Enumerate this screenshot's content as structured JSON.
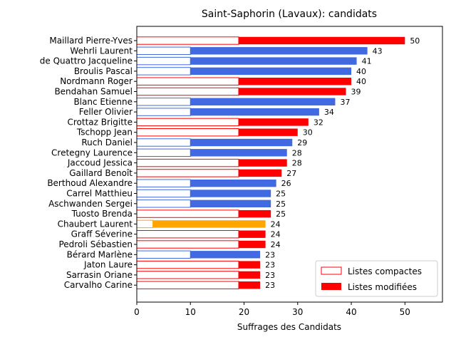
{
  "chart_data": {
    "type": "bar",
    "orientation": "horizontal",
    "title": "Saint-Saphorin (Lavaux): candidats",
    "xlabel": "Suffrages des Candidats",
    "ylabel": "",
    "xlim": [
      0,
      57
    ],
    "xticks": [
      "0",
      "10",
      "20",
      "30",
      "40",
      "50"
    ],
    "legend_position": "bottom-right",
    "legend": [
      {
        "label": "Listes compactes",
        "style": "outline"
      },
      {
        "label": "Listes modifiées",
        "style": "filled"
      }
    ],
    "colors": {
      "red": "#ff0000",
      "blue": "#4169e1",
      "orange": "#ffa500"
    },
    "candidates": [
      {
        "name": "Maillard Pierre-Yves",
        "total": 50,
        "compact": 19,
        "color": "red"
      },
      {
        "name": "Wehrli Laurent",
        "total": 43,
        "compact": 10,
        "color": "blue"
      },
      {
        "name": "de Quattro Jacqueline",
        "total": 41,
        "compact": 10,
        "color": "blue"
      },
      {
        "name": "Broulis Pascal",
        "total": 40,
        "compact": 10,
        "color": "blue"
      },
      {
        "name": "Nordmann Roger",
        "total": 40,
        "compact": 19,
        "color": "red"
      },
      {
        "name": "Bendahan Samuel",
        "total": 39,
        "compact": 19,
        "color": "red"
      },
      {
        "name": "Blanc Etienne",
        "total": 37,
        "compact": 10,
        "color": "blue"
      },
      {
        "name": "Feller Olivier",
        "total": 34,
        "compact": 10,
        "color": "blue"
      },
      {
        "name": "Crottaz Brigitte",
        "total": 32,
        "compact": 19,
        "color": "red"
      },
      {
        "name": "Tschopp Jean",
        "total": 30,
        "compact": 19,
        "color": "red"
      },
      {
        "name": "Ruch Daniel",
        "total": 29,
        "compact": 10,
        "color": "blue"
      },
      {
        "name": "Cretegny Laurence",
        "total": 28,
        "compact": 10,
        "color": "blue"
      },
      {
        "name": "Jaccoud Jessica",
        "total": 28,
        "compact": 19,
        "color": "red"
      },
      {
        "name": "Gaillard Benoît",
        "total": 27,
        "compact": 19,
        "color": "red"
      },
      {
        "name": "Berthoud Alexandre",
        "total": 26,
        "compact": 10,
        "color": "blue"
      },
      {
        "name": "Carrel Matthieu",
        "total": 25,
        "compact": 10,
        "color": "blue"
      },
      {
        "name": "Aschwanden Sergei",
        "total": 25,
        "compact": 10,
        "color": "blue"
      },
      {
        "name": "Tuosto Brenda",
        "total": 25,
        "compact": 19,
        "color": "red"
      },
      {
        "name": "Chaubert Laurent",
        "total": 24,
        "compact": 3,
        "color": "orange"
      },
      {
        "name": "Graff Séverine",
        "total": 24,
        "compact": 19,
        "color": "red"
      },
      {
        "name": "Pedroli Sébastien",
        "total": 24,
        "compact": 19,
        "color": "red"
      },
      {
        "name": "Bérard Marlène",
        "total": 23,
        "compact": 10,
        "color": "blue"
      },
      {
        "name": "Jaton Laure",
        "total": 23,
        "compact": 19,
        "color": "red"
      },
      {
        "name": "Sarrasin Oriane",
        "total": 23,
        "compact": 19,
        "color": "red"
      },
      {
        "name": "Carvalho Carine",
        "total": 23,
        "compact": 19,
        "color": "red"
      }
    ]
  }
}
